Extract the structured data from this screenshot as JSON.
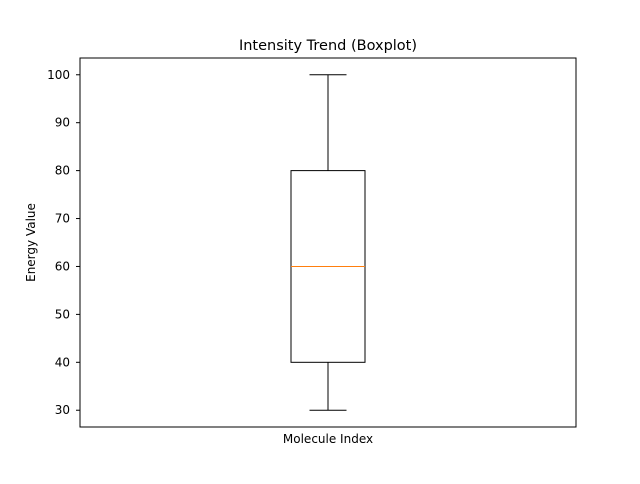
{
  "chart_data": {
    "type": "box",
    "title": "Intensity Trend (Boxplot)",
    "xlabel": "Molecule Index",
    "ylabel": "Energy Value",
    "ylim": [
      26.5,
      103.5
    ],
    "yticks": [
      30,
      40,
      50,
      60,
      70,
      80,
      90,
      100
    ],
    "grid": false,
    "boxes": [
      {
        "whisker_low": 30,
        "q1": 40,
        "median": 60,
        "q3": 80,
        "whisker_high": 100
      }
    ],
    "colors": {
      "box": "#000000",
      "median": "#ff7f0e",
      "axes": "#000000"
    }
  }
}
